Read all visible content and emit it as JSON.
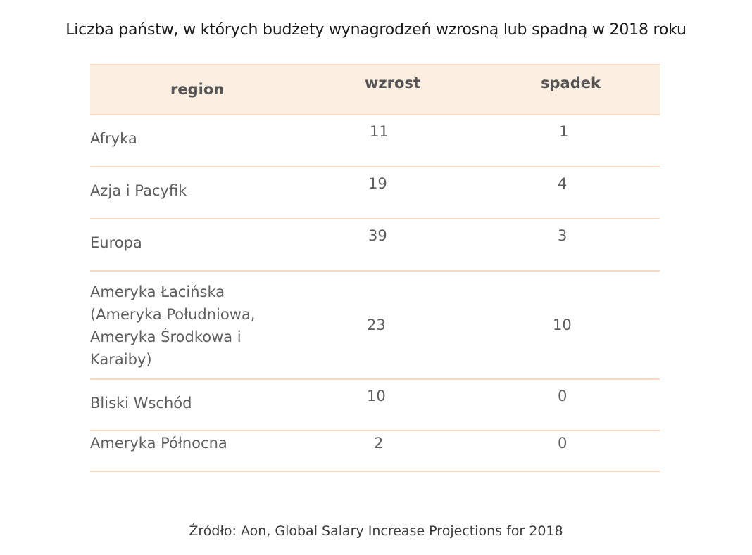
{
  "title": "Liczba państw, w których budżety wynagrodzeń wzrosną lub spadną w 2018 roku",
  "source": "Źródło: Aon, Global Salary Increase Projections for 2018",
  "colors": {
    "header_bg": "#fdeee2",
    "border": "#f6d9c0",
    "title": "#1a1a1a",
    "text": "#5e5e5e"
  },
  "chart_data": {
    "type": "table",
    "title": "Liczba państw, w których budżety wynagrodzeń wzrosną lub spadną w 2018 roku",
    "columns": [
      "region",
      "wzrost",
      "spadek"
    ],
    "rows": [
      {
        "region": "Afryka",
        "wzrost": "11",
        "spadek": "1"
      },
      {
        "region": "Azja i Pacyfik",
        "wzrost": "19",
        "spadek": "4"
      },
      {
        "region": "Europa",
        "wzrost": "39",
        "spadek": "3"
      },
      {
        "region": "Ameryka Łacińska (Ameryka Południowa, Ameryka Środkowa i Karaiby)",
        "wzrost": "23",
        "spadek": "10"
      },
      {
        "region": "Bliski Wschód",
        "wzrost": "10",
        "spadek": "0"
      },
      {
        "region": "Ameryka Północna",
        "wzrost": "2",
        "spadek": "0"
      }
    ]
  }
}
